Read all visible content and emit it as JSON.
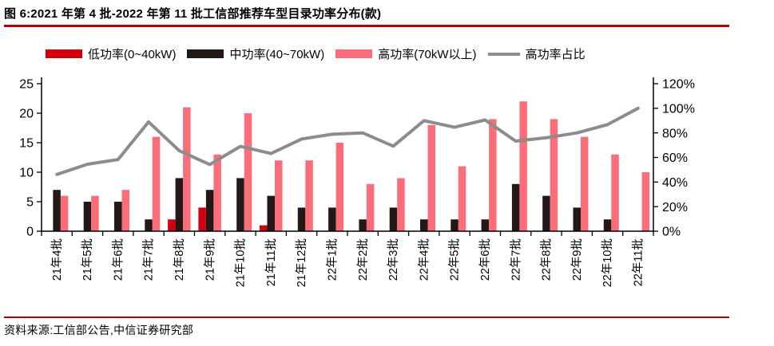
{
  "figure": {
    "title": "图 6:2021 年第 4 批-2022 年第 11 批工信部推荐车型目录功率分布(款)",
    "source": "资料来源:工信部公告,中信证券研究部"
  },
  "colors": {
    "rule_red": "#b30000",
    "low_power_bar": "#d0000f",
    "mid_power_bar": "#231815",
    "high_power_bar": "#fb6e79",
    "ratio_line": "#8c8c8c",
    "axis": "#000000"
  },
  "chart_data": {
    "type": "bar+line",
    "title": "2021年第4批-2022年第11批工信部推荐车型目录功率分布(款)",
    "categories": [
      "21年4批",
      "21年5批",
      "21年6批",
      "21年7批",
      "21年8批",
      "21年9批",
      "21年10批",
      "21年11批",
      "21年12批",
      "22年1批",
      "22年2批",
      "22年3批",
      "22年4批",
      "22年5批",
      "22年6批",
      "22年7批",
      "22年8批",
      "22年9批",
      "22年10批",
      "22年11批"
    ],
    "series": [
      {
        "key": "low-power",
        "name": "低功率(0~40kW)",
        "type": "bar",
        "color": "#d0000f",
        "values": [
          0,
          0,
          0,
          0,
          2,
          4,
          0,
          1,
          0,
          0,
          0,
          0,
          0,
          0,
          0,
          0,
          0,
          0,
          0,
          0
        ]
      },
      {
        "key": "mid-power",
        "name": "中功率(40~70kW)",
        "type": "bar",
        "color": "#231815",
        "values": [
          7,
          5,
          5,
          2,
          9,
          7,
          9,
          6,
          4,
          4,
          2,
          4,
          2,
          2,
          2,
          8,
          6,
          4,
          2,
          0
        ]
      },
      {
        "key": "high-power",
        "name": "高功率(70kW以上)",
        "type": "bar",
        "color": "#fb6e79",
        "values": [
          6,
          6,
          7,
          16,
          21,
          13,
          20,
          12,
          12,
          15,
          8,
          9,
          18,
          11,
          19,
          22,
          19,
          16,
          13,
          10
        ]
      },
      {
        "key": "high-power-ratio",
        "name": "高功率占比",
        "type": "line",
        "axis": "right",
        "color": "#8c8c8c",
        "values": [
          46.2,
          54.5,
          58.3,
          88.9,
          65.6,
          54.2,
          69.0,
          63.2,
          75.0,
          78.9,
          80.0,
          69.2,
          90.0,
          84.6,
          90.5,
          73.3,
          76.0,
          80.0,
          86.7,
          100.0
        ]
      }
    ],
    "left_axis": {
      "min": 0,
      "max": 25,
      "tick_labels": [
        "0",
        "5",
        "10",
        "15",
        "20",
        "25"
      ]
    },
    "right_axis": {
      "min": 0,
      "max": 120,
      "tick_labels": [
        "0%",
        "20%",
        "40%",
        "60%",
        "80%",
        "100%",
        "120%"
      ]
    },
    "legend_position": "top",
    "grid": false,
    "xlabel": "",
    "ylabel": ""
  }
}
